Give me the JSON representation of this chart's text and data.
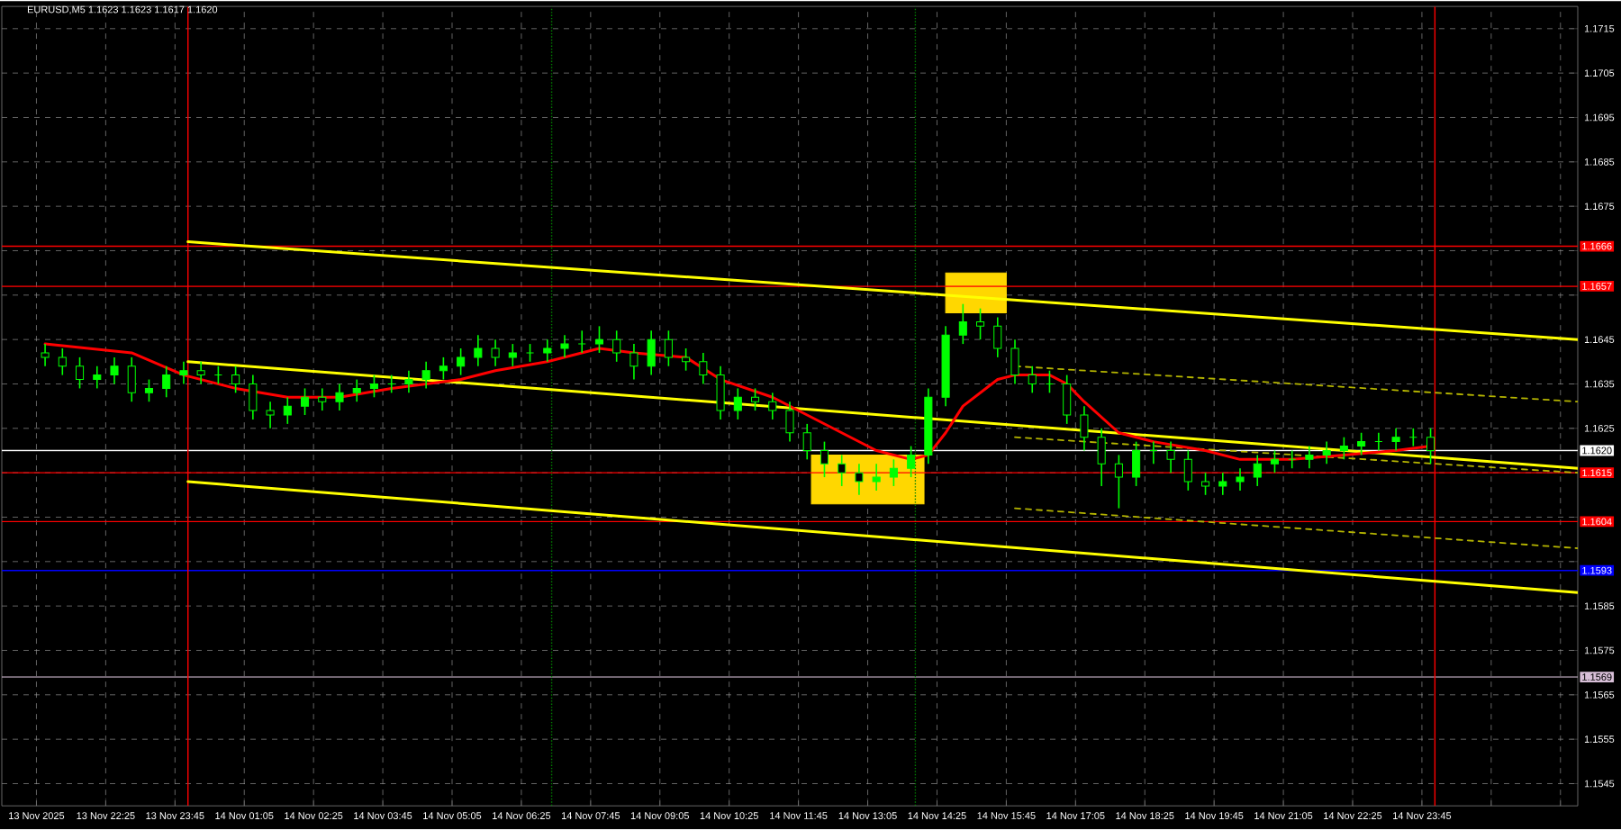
{
  "chart_data": {
    "type": "candlestick",
    "title": "EURUSD,M5  1.1623 1.1623 1.1617 1.1620",
    "color": "#00ff00",
    "x": [
      "2025-11-13T21:15",
      "2025-11-13T21:35",
      "2025-11-13T21:55",
      "2025-11-13T22:15",
      "2025-11-13T22:35",
      "2025-11-13T22:55",
      "2025-11-13T23:15",
      "2025-11-13T23:35",
      "2025-11-13T23:55",
      "2025-11-14T00:15",
      "2025-11-14T00:35",
      "2025-11-14T00:55",
      "2025-11-14T01:15",
      "2025-11-14T01:35",
      "2025-11-14T01:55",
      "2025-11-14T02:15",
      "2025-11-14T02:35",
      "2025-11-14T02:55",
      "2025-11-14T03:15",
      "2025-11-14T03:35",
      "2025-11-14T03:55",
      "2025-11-14T04:15",
      "2025-11-14T04:35",
      "2025-11-14T04:55",
      "2025-11-14T05:15",
      "2025-11-14T05:35",
      "2025-11-14T05:55",
      "2025-11-14T06:15",
      "2025-11-14T06:35",
      "2025-11-14T06:55",
      "2025-11-14T07:15",
      "2025-11-14T07:35",
      "2025-11-14T07:55",
      "2025-11-14T08:15",
      "2025-11-14T08:35",
      "2025-11-14T08:55",
      "2025-11-14T09:15",
      "2025-11-14T09:35",
      "2025-11-14T09:55",
      "2025-11-14T10:15",
      "2025-11-14T10:35",
      "2025-11-14T10:55",
      "2025-11-14T11:15",
      "2025-11-14T11:35",
      "2025-11-14T11:55",
      "2025-11-14T12:15",
      "2025-11-14T12:35",
      "2025-11-14T12:55",
      "2025-11-14T13:15",
      "2025-11-14T13:35",
      "2025-11-14T13:55",
      "2025-11-14T14:15",
      "2025-11-14T14:35",
      "2025-11-14T14:55",
      "2025-11-14T15:15",
      "2025-11-14T15:35",
      "2025-11-14T15:55",
      "2025-11-14T16:15",
      "2025-11-14T16:35",
      "2025-11-14T16:55",
      "2025-11-14T17:15",
      "2025-11-14T17:35",
      "2025-11-14T17:55",
      "2025-11-14T18:15",
      "2025-11-14T18:35",
      "2025-11-14T18:55",
      "2025-11-14T19:15",
      "2025-11-14T19:35",
      "2025-11-14T19:55",
      "2025-11-14T20:15",
      "2025-11-14T20:35",
      "2025-11-14T20:55",
      "2025-11-14T21:15",
      "2025-11-14T21:35",
      "2025-11-14T21:55",
      "2025-11-14T22:15",
      "2025-11-14T22:35",
      "2025-11-14T22:55",
      "2025-11-14T23:15",
      "2025-11-14T23:35",
      "2025-11-14T23:55"
    ],
    "ohlc": [
      [
        1.1642,
        1.1644,
        1.1639,
        1.1641
      ],
      [
        1.1641,
        1.1643,
        1.1637,
        1.1639
      ],
      [
        1.1639,
        1.1641,
        1.1634,
        1.1636
      ],
      [
        1.1636,
        1.1639,
        1.1634,
        1.1637
      ],
      [
        1.1637,
        1.1641,
        1.1635,
        1.1639
      ],
      [
        1.1639,
        1.1641,
        1.1631,
        1.1633
      ],
      [
        1.1633,
        1.1636,
        1.1631,
        1.1634
      ],
      [
        1.1634,
        1.1639,
        1.1632,
        1.1637
      ],
      [
        1.1637,
        1.164,
        1.1635,
        1.1638
      ],
      [
        1.1638,
        1.164,
        1.1635,
        1.1637
      ],
      [
        1.1637,
        1.1639,
        1.1635,
        1.1637
      ],
      [
        1.1637,
        1.1639,
        1.1633,
        1.1635
      ],
      [
        1.1635,
        1.1637,
        1.1627,
        1.1629
      ],
      [
        1.1629,
        1.1631,
        1.1625,
        1.1628
      ],
      [
        1.1628,
        1.1632,
        1.1626,
        1.163
      ],
      [
        1.163,
        1.1634,
        1.1628,
        1.1632
      ],
      [
        1.1632,
        1.1634,
        1.1629,
        1.1631
      ],
      [
        1.1631,
        1.1635,
        1.1629,
        1.1633
      ],
      [
        1.1633,
        1.1636,
        1.1631,
        1.1634
      ],
      [
        1.1634,
        1.1637,
        1.1632,
        1.1635
      ],
      [
        1.1635,
        1.1637,
        1.1633,
        1.1635
      ],
      [
        1.1635,
        1.1638,
        1.1633,
        1.1636
      ],
      [
        1.1636,
        1.164,
        1.1634,
        1.1638
      ],
      [
        1.1638,
        1.1641,
        1.1636,
        1.1639
      ],
      [
        1.1639,
        1.1643,
        1.1637,
        1.1641
      ],
      [
        1.1641,
        1.1646,
        1.1639,
        1.1643
      ],
      [
        1.1643,
        1.1645,
        1.1639,
        1.1641
      ],
      [
        1.1641,
        1.1644,
        1.1639,
        1.1642
      ],
      [
        1.1642,
        1.1644,
        1.164,
        1.1642
      ],
      [
        1.1642,
        1.1645,
        1.164,
        1.1643
      ],
      [
        1.1643,
        1.1646,
        1.1641,
        1.1644
      ],
      [
        1.1644,
        1.1647,
        1.1642,
        1.1644
      ],
      [
        1.1644,
        1.1648,
        1.1642,
        1.1645
      ],
      [
        1.1645,
        1.1647,
        1.164,
        1.1642
      ],
      [
        1.1642,
        1.1644,
        1.1636,
        1.1639
      ],
      [
        1.1639,
        1.1647,
        1.1637,
        1.1645
      ],
      [
        1.1645,
        1.1647,
        1.1639,
        1.1641
      ],
      [
        1.1641,
        1.1643,
        1.1638,
        1.164
      ],
      [
        1.164,
        1.1642,
        1.1635,
        1.1637
      ],
      [
        1.1637,
        1.1639,
        1.1627,
        1.1629
      ],
      [
        1.1629,
        1.1634,
        1.1627,
        1.1632
      ],
      [
        1.1632,
        1.1634,
        1.1629,
        1.1631
      ],
      [
        1.1631,
        1.1633,
        1.1627,
        1.1629
      ],
      [
        1.1629,
        1.1631,
        1.1622,
        1.1624
      ],
      [
        1.1624,
        1.1626,
        1.1618,
        1.162
      ],
      [
        1.162,
        1.1622,
        1.1614,
        1.1617
      ],
      [
        1.1617,
        1.1619,
        1.1612,
        1.1615
      ],
      [
        1.1615,
        1.1617,
        1.161,
        1.1613
      ],
      [
        1.1613,
        1.1617,
        1.1611,
        1.1614
      ],
      [
        1.1614,
        1.1618,
        1.1612,
        1.1616
      ],
      [
        1.1616,
        1.1621,
        1.1614,
        1.1619
      ],
      [
        1.1619,
        1.1634,
        1.1617,
        1.1632
      ],
      [
        1.1632,
        1.1648,
        1.163,
        1.1646
      ],
      [
        1.1646,
        1.1653,
        1.1644,
        1.1649
      ],
      [
        1.1649,
        1.1652,
        1.1645,
        1.1648
      ],
      [
        1.1648,
        1.165,
        1.1641,
        1.1643
      ],
      [
        1.1643,
        1.1645,
        1.1635,
        1.1637
      ],
      [
        1.1637,
        1.1639,
        1.1633,
        1.1635
      ],
      [
        1.1635,
        1.1638,
        1.1633,
        1.1635
      ],
      [
        1.1635,
        1.1637,
        1.1626,
        1.1628
      ],
      [
        1.1628,
        1.163,
        1.162,
        1.1623
      ],
      [
        1.1623,
        1.1625,
        1.1612,
        1.1617
      ],
      [
        1.1617,
        1.1619,
        1.1607,
        1.1614
      ],
      [
        1.1614,
        1.1622,
        1.1612,
        1.162
      ],
      [
        1.162,
        1.1622,
        1.1617,
        1.162
      ],
      [
        1.162,
        1.1622,
        1.1615,
        1.1618
      ],
      [
        1.1618,
        1.162,
        1.1611,
        1.1613
      ],
      [
        1.1613,
        1.1615,
        1.161,
        1.1612
      ],
      [
        1.1612,
        1.1615,
        1.161,
        1.1613
      ],
      [
        1.1613,
        1.1616,
        1.1611,
        1.1614
      ],
      [
        1.1614,
        1.1619,
        1.1612,
        1.1617
      ],
      [
        1.1617,
        1.162,
        1.1615,
        1.1618
      ],
      [
        1.1618,
        1.162,
        1.1616,
        1.1618
      ],
      [
        1.1618,
        1.1621,
        1.1616,
        1.1619
      ],
      [
        1.1619,
        1.1622,
        1.1617,
        1.162
      ],
      [
        1.162,
        1.1623,
        1.1618,
        1.1621
      ],
      [
        1.1621,
        1.1624,
        1.1619,
        1.1622
      ],
      [
        1.1622,
        1.1624,
        1.162,
        1.1622
      ],
      [
        1.1622,
        1.1625,
        1.162,
        1.1623
      ],
      [
        1.1623,
        1.1625,
        1.1621,
        1.1623
      ],
      [
        1.1623,
        1.1625,
        1.1617,
        1.162
      ]
    ],
    "series": [
      {
        "type": "area",
        "color": "#ffd700",
        "x": [
          "2025-11-14T12:00",
          "2025-11-14T12:00",
          "2025-11-14T14:10",
          "2025-11-14T14:10"
        ],
        "values": [
          1.1608,
          1.1619,
          1.1619,
          1.1608
        ]
      },
      {
        "type": "area",
        "color": "#ffd700",
        "x": [
          "2025-11-14T14:35",
          "2025-11-14T14:35",
          "2025-11-14T15:45",
          "2025-11-14T15:45"
        ],
        "values": [
          1.1651,
          1.166,
          1.166,
          1.1651
        ]
      },
      {
        "type": "line",
        "color": "#ffff00",
        "line_style": "solid",
        "x": [
          "2025-11-14T00:00",
          "2025-11-15T02:45"
        ],
        "values": [
          1.1667,
          1.1645
        ]
      },
      {
        "type": "line",
        "color": "#ffff00",
        "line_style": "solid",
        "x": [
          "2025-11-14T00:00",
          "2025-11-15T02:45"
        ],
        "values": [
          1.164,
          1.1616
        ]
      },
      {
        "type": "line",
        "color": "#ffff00",
        "line_style": "solid",
        "x": [
          "2025-11-14T00:00",
          "2025-11-15T02:45"
        ],
        "values": [
          1.1613,
          1.1588
        ]
      },
      {
        "type": "line",
        "color": "#b5b500",
        "line_style": "dashed",
        "x": [
          "2025-11-14T15:55",
          "2025-11-15T02:45"
        ],
        "values": [
          1.1639,
          1.1631
        ]
      },
      {
        "type": "line",
        "color": "#b5b500",
        "line_style": "dashed",
        "x": [
          "2025-11-14T15:55",
          "2025-11-15T02:45"
        ],
        "values": [
          1.1623,
          1.1615
        ]
      },
      {
        "type": "line",
        "color": "#b5b500",
        "line_style": "dashed",
        "x": [
          "2025-11-14T15:55",
          "2025-11-15T02:45"
        ],
        "values": [
          1.1607,
          1.1598
        ]
      },
      {
        "type": "line",
        "color": "#ff0000",
        "line_style": "solid",
        "x": [
          "2025-11-13T21:15",
          "2025-11-13T22:55",
          "2025-11-13T23:55",
          "2025-11-14T00:55",
          "2025-11-14T01:55",
          "2025-11-14T02:55",
          "2025-11-14T03:55",
          "2025-11-14T05:15",
          "2025-11-14T05:55",
          "2025-11-14T06:55",
          "2025-11-14T07:55",
          "2025-11-14T08:35",
          "2025-11-14T09:35",
          "2025-11-14T10:15",
          "2025-11-14T11:15",
          "2025-11-14T11:55",
          "2025-11-14T12:35",
          "2025-11-14T13:15",
          "2025-11-14T13:55",
          "2025-11-14T14:15",
          "2025-11-14T14:35",
          "2025-11-14T14:55",
          "2025-11-14T15:35",
          "2025-11-14T15:55",
          "2025-11-14T16:35",
          "2025-11-14T16:55",
          "2025-11-14T17:15",
          "2025-11-14T17:55",
          "2025-11-14T18:35",
          "2025-11-14T19:35",
          "2025-11-14T20:15",
          "2025-11-14T21:15",
          "2025-11-14T22:15",
          "2025-11-14T23:15",
          "2025-11-14T23:55"
        ],
        "values": [
          1.1644,
          1.1642,
          1.1637,
          1.1634,
          1.1632,
          1.1632,
          1.1634,
          1.1636,
          1.1638,
          1.164,
          1.1643,
          1.1642,
          1.1641,
          1.1636,
          1.1632,
          1.1628,
          1.1624,
          1.162,
          1.1618,
          1.1619,
          1.1624,
          1.163,
          1.1636,
          1.1637,
          1.1637,
          1.1635,
          1.1631,
          1.1624,
          1.1622,
          1.162,
          1.1618,
          1.1618,
          1.1619,
          1.162,
          1.1621
        ]
      }
    ],
    "ref_lines": [
      {
        "axis": "y",
        "value": 1.1666,
        "label": "1.1666",
        "color": "#ff0000"
      },
      {
        "axis": "y",
        "value": 1.1657,
        "label": "1.1657",
        "color": "#ff0000"
      },
      {
        "axis": "y",
        "value": 1.162,
        "label": "1.1620",
        "color": "#ffffff"
      },
      {
        "axis": "y",
        "value": 1.1615,
        "label": "1.1615",
        "color": "#ff0000"
      },
      {
        "axis": "y",
        "value": 1.1604,
        "label": "1.1604",
        "color": "#ff0000"
      },
      {
        "axis": "y",
        "value": 1.1593,
        "label": "1.1593",
        "color": "#0000ff"
      },
      {
        "axis": "y",
        "value": 1.1569,
        "label": "1.1569",
        "color": "#d8bfd8"
      },
      {
        "axis": "x",
        "value": "2025-11-14T00:00",
        "color": "#ff0000",
        "line_style": "solid"
      },
      {
        "axis": "x",
        "value": "2025-11-15T00:00",
        "color": "#ff0000",
        "line_style": "solid"
      },
      {
        "axis": "x",
        "value": "2025-11-14T07:00",
        "color": "#008000",
        "line_style": "dotted"
      },
      {
        "axis": "x",
        "value": "2025-11-14T14:00",
        "color": "#008000",
        "line_style": "dotted"
      }
    ],
    "xlim": [
      "2025-11-13T20:25",
      "2025-11-15T02:45"
    ],
    "ylim": [
      1.154,
      1.172
    ],
    "xticks": [
      {
        "value": "2025-11-13T21:05",
        "label": "13 Nov 2025"
      },
      {
        "value": "2025-11-13T22:25",
        "label": "13 Nov 22:25"
      },
      {
        "value": "2025-11-13T23:45",
        "label": "13 Nov 23:45"
      },
      {
        "value": "2025-11-14T01:05",
        "label": "14 Nov 01:05"
      },
      {
        "value": "2025-11-14T02:25",
        "label": "14 Nov 02:25"
      },
      {
        "value": "2025-11-14T03:45",
        "label": "14 Nov 03:45"
      },
      {
        "value": "2025-11-14T05:05",
        "label": "14 Nov 05:05"
      },
      {
        "value": "2025-11-14T06:25",
        "label": "14 Nov 06:25"
      },
      {
        "value": "2025-11-14T07:45",
        "label": "14 Nov 07:45"
      },
      {
        "value": "2025-11-14T09:05",
        "label": "14 Nov 09:05"
      },
      {
        "value": "2025-11-14T10:25",
        "label": "14 Nov 10:25"
      },
      {
        "value": "2025-11-14T11:45",
        "label": "14 Nov 11:45"
      },
      {
        "value": "2025-11-14T13:05",
        "label": "14 Nov 13:05"
      },
      {
        "value": "2025-11-14T14:25",
        "label": "14 Nov 14:25"
      },
      {
        "value": "2025-11-14T15:45",
        "label": "14 Nov 15:45"
      },
      {
        "value": "2025-11-14T17:05",
        "label": "14 Nov 17:05"
      },
      {
        "value": "2025-11-14T18:25",
        "label": "14 Nov 18:25"
      },
      {
        "value": "2025-11-14T19:45",
        "label": "14 Nov 19:45"
      },
      {
        "value": "2025-11-14T21:05",
        "label": "14 Nov 21:05"
      },
      {
        "value": "2025-11-14T22:25",
        "label": "14 Nov 22:25"
      },
      {
        "value": "2025-11-14T23:45",
        "label": "14 Nov 23:45"
      },
      {
        "value": "2025-11-15T01:05",
        "label": null
      },
      {
        "value": "2025-11-15T02:25",
        "label": null
      }
    ],
    "yticks": [
      1.1545,
      1.1555,
      1.1565,
      1.1575,
      1.1585,
      {
        "value": 1.1595,
        "label": null
      },
      {
        "value": 1.1605,
        "label": null
      },
      {
        "value": 1.1615,
        "label": null
      },
      1.1625,
      1.1635,
      1.1645,
      {
        "value": 1.1655,
        "label": null
      },
      {
        "value": 1.1665,
        "label": null
      },
      1.1675,
      1.1685,
      1.1695,
      1.1705,
      1.1715
    ],
    "grid": true
  }
}
